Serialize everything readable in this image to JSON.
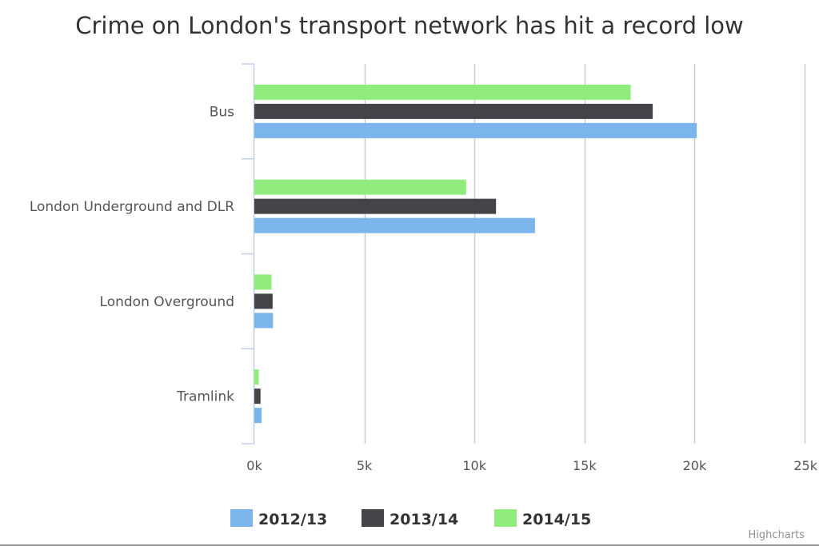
{
  "chart_data": {
    "type": "bar",
    "orientation": "horizontal",
    "title": "Crime on London's transport network has hit a record low",
    "categories": [
      "Bus",
      "London Underground and DLR",
      "London Overground",
      "Tramlink"
    ],
    "series": [
      {
        "name": "2012/13",
        "color": "#7cb5ec",
        "values": [
          20100,
          12750,
          850,
          330
        ]
      },
      {
        "name": "2013/14",
        "color": "#434348",
        "values": [
          18100,
          10980,
          830,
          280
        ]
      },
      {
        "name": "2014/15",
        "color": "#90ed7d",
        "values": [
          17100,
          9620,
          780,
          200
        ]
      }
    ],
    "xlim": [
      0,
      25000
    ],
    "ticks": [
      0,
      5000,
      10000,
      15000,
      20000,
      25000
    ],
    "tick_labels": [
      "0k",
      "5k",
      "10k",
      "15k",
      "20k",
      "25k"
    ],
    "grid": true,
    "legend_position": "bottom-center"
  },
  "credits": "Highcharts"
}
